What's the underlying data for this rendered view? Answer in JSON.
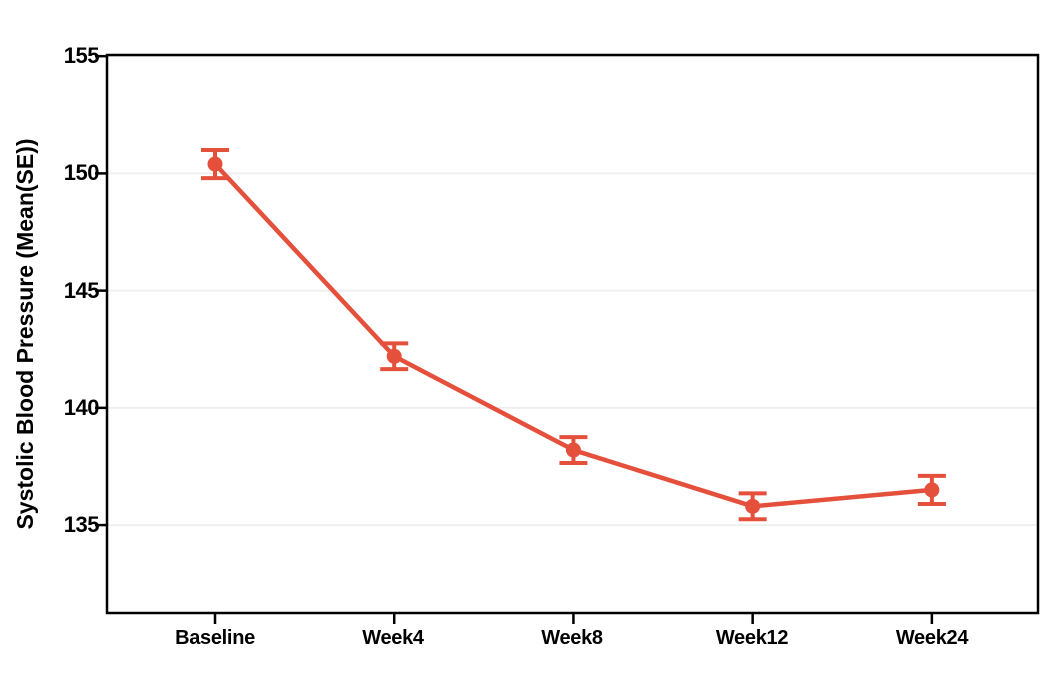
{
  "figure": {
    "background_color": "#ffffff",
    "frame_color": "#000000",
    "grid_color": "#efefef",
    "text_color": "#000000"
  },
  "chart_data": {
    "type": "line",
    "title": "",
    "xlabel": "",
    "ylabel": "Systolic Blood Pressure (Mean(SE))",
    "categories": [
      "Baseline",
      "Week4",
      "Week8",
      "Week12",
      "Week24"
    ],
    "series": [
      {
        "name": "Systolic Blood Pressure Mean(SE)",
        "means": [
          150.4,
          142.2,
          138.2,
          135.8,
          136.5
        ],
        "se": [
          0.6,
          0.55,
          0.55,
          0.55,
          0.6
        ],
        "color": "#e5503c",
        "marker": "filled-circle",
        "error_bar_caps": true
      }
    ],
    "yticks": [
      135,
      140,
      145,
      150,
      155
    ],
    "ytick_labels": [
      "135",
      "140",
      "145",
      "150",
      "155"
    ],
    "ylim": [
      131.25,
      155.05
    ],
    "grid": "horizontal",
    "legend_position": "none"
  }
}
